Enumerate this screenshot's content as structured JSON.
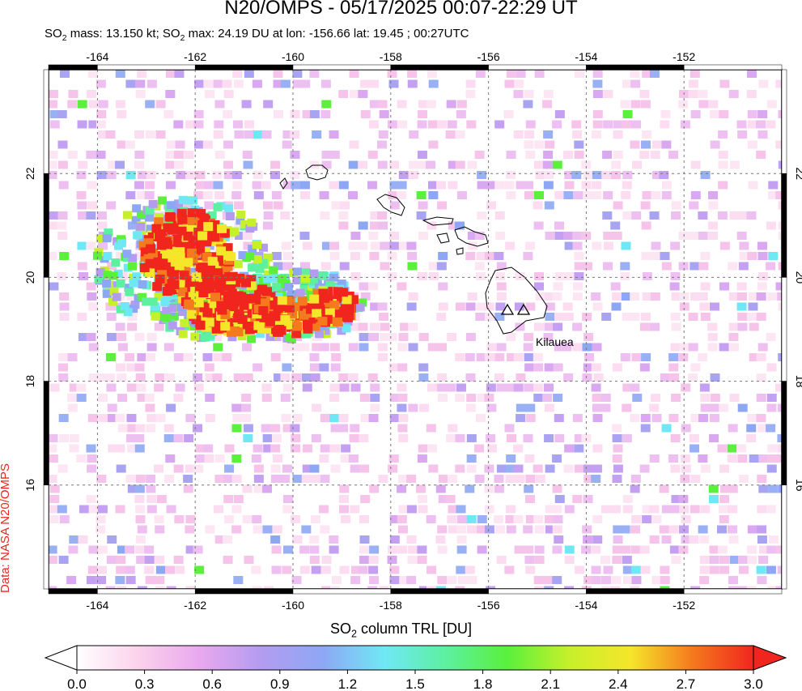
{
  "title": "N20/OMPS - 05/17/2025 00:07-22:29 UT",
  "subtitle": {
    "so2_a": "SO",
    "sub_a": "2",
    "mass_text": " mass: 13.150 kt; SO",
    "sub_b": "2",
    "max_text": " max: 24.19 DU at lon: -156.66 lat: 19.45 ; 00:27UTC"
  },
  "side_credit": "Data: NASA N20/OMPS",
  "map": {
    "lon_range": [
      -165,
      -150
    ],
    "lat_range": [
      14,
      24
    ],
    "lon_ticks": [
      "-164",
      "-162",
      "-160",
      "-158",
      "-156",
      "-154",
      "-152"
    ],
    "lat_ticks": [
      "16",
      "18",
      "20",
      "22"
    ],
    "grid": true,
    "volcano_label": "Kilauea",
    "volcano_markers": [
      {
        "lon": -155.6,
        "lat": 19.45
      },
      {
        "lon": -155.3,
        "lat": 19.4
      }
    ],
    "plume_color": "#ff2200",
    "background_color": "#ffffff"
  },
  "colorbar": {
    "title_a": "SO",
    "title_sub": "2",
    "title_b": " column TRL [DU]",
    "tick_labels": [
      "0.0",
      "0.3",
      "0.6",
      "0.9",
      "1.2",
      "1.5",
      "1.8",
      "2.1",
      "2.4",
      "2.7",
      "3.0"
    ],
    "range": [
      0.0,
      3.0
    ],
    "colors": [
      "#ffffff",
      "#fbd2ec",
      "#e8a8ee",
      "#b39cf0",
      "#8ea7f5",
      "#6fe8f5",
      "#5df0a0",
      "#5af03c",
      "#c6f02a",
      "#f5e62a",
      "#f57a1e",
      "#f0261e"
    ]
  }
}
